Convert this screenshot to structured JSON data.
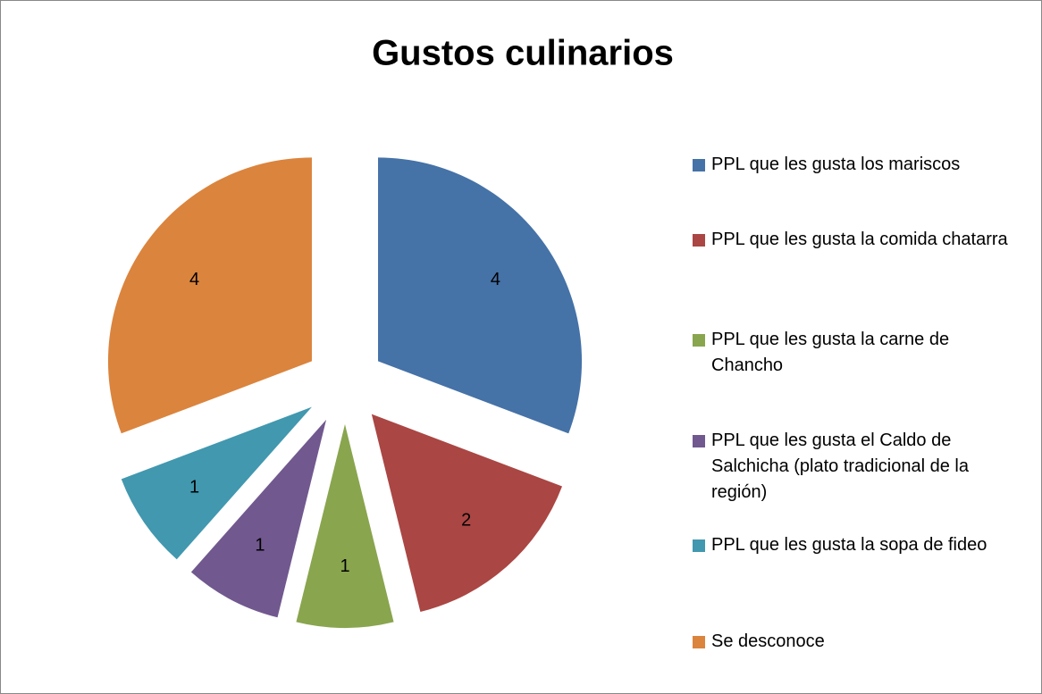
{
  "chart_data": {
    "type": "pie",
    "title": "Gustos culinarios",
    "categories": [
      "PPL que les gusta los mariscos",
      "PPL que les gusta la comida chatarra",
      "PPL que les gusta la carne de Chancho",
      "PPL que les gusta el Caldo de Salchicha (plato tradicional de la región)",
      "PPL que les gusta la sopa de fideo",
      "Se desconoce"
    ],
    "values": [
      4,
      2,
      1,
      1,
      1,
      4
    ],
    "colors": [
      "#4572a7",
      "#aa4643",
      "#89a54e",
      "#71588f",
      "#4198af",
      "#db843d"
    ],
    "legend": "right"
  }
}
